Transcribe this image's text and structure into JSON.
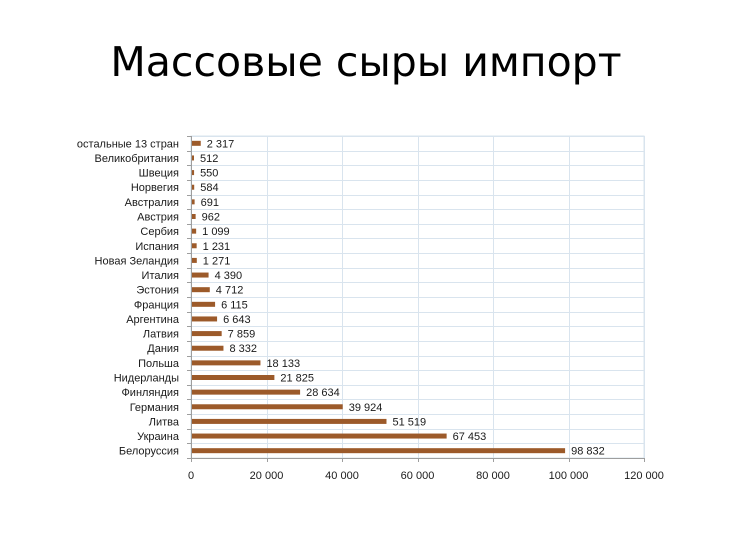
{
  "slide": {
    "title": "Массовые сыры импорт"
  },
  "chart_data": {
    "type": "bar",
    "orientation": "horizontal",
    "categories": [
      "Белоруссия",
      "Украина",
      "Литва",
      "Германия",
      "Финляндия",
      "Нидерланды",
      "Польша",
      "Дания",
      "Латвия",
      "Аргентина",
      "Франция",
      "Эстония",
      "Италия",
      "Новая Зеландия",
      "Испания",
      "Сербия",
      "Австрия",
      "Австралия",
      "Норвегия",
      "Швеция",
      "Великобритания",
      "остальные 13 стран"
    ],
    "values": [
      98832,
      67453,
      51519,
      39924,
      28634,
      21825,
      18133,
      8332,
      7859,
      6643,
      6115,
      4712,
      4390,
      1271,
      1231,
      1099,
      962,
      691,
      584,
      550,
      512,
      2317
    ],
    "value_labels": [
      "98 832",
      "67 453",
      "51 519",
      "39 924",
      "28 634",
      "21 825",
      "18 133",
      "8 332",
      "7 859",
      "6 643",
      "6 115",
      "4 712",
      "4 390",
      "1 271",
      "1 231",
      "1 099",
      "962",
      "691",
      "584",
      "550",
      "512",
      "2 317"
    ],
    "x_ticks": [
      0,
      20000,
      40000,
      60000,
      80000,
      100000,
      120000
    ],
    "x_tick_labels": [
      "0",
      "20 000",
      "40 000",
      "60 000",
      "80 000",
      "100 000",
      "120 000"
    ],
    "xlim": [
      0,
      120000
    ],
    "xlabel": "",
    "ylabel": "",
    "grid": true,
    "legend": "none",
    "bar_color": "#9c5a2a",
    "grid_color": "#d9e4ee",
    "axis_color": "#9e9e9e"
  }
}
